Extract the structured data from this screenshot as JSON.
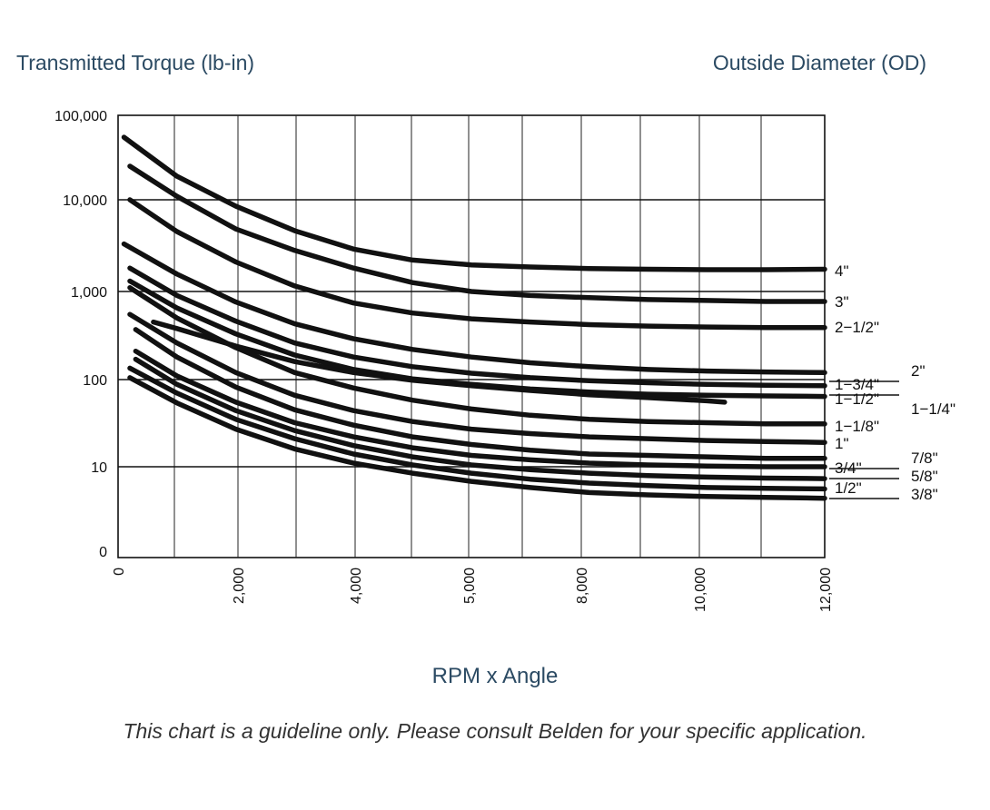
{
  "header": {
    "y_axis_title": "Transmitted Torque (lb-in)",
    "od_title": "Outside Diameter (OD)"
  },
  "footer": {
    "x_axis_title": "RPM x Angle",
    "note": "This chart is a guideline only. Please consult Belden for your specific application."
  },
  "chart_data": {
    "type": "line",
    "title": "",
    "xlabel": "RPM x Angle",
    "ylabel": "Transmitted Torque (lb-in)",
    "y_scale": "log",
    "x_ticks": [
      "0",
      "2,000",
      "4,000",
      "5,000",
      "8,000",
      "10,000",
      "12,000"
    ],
    "y_ticks": [
      "0",
      "10",
      "100",
      "1,000",
      "10,000",
      "100,000"
    ],
    "grid": true,
    "series_labels_position": "right",
    "series": [
      {
        "name": "4\"",
        "x": [
          0.1,
          1,
          2,
          3,
          4,
          5,
          6,
          7,
          8,
          9,
          10,
          11,
          12
        ],
        "y": [
          55000,
          19000,
          8500,
          4600,
          2900,
          2200,
          1950,
          1850,
          1780,
          1750,
          1730,
          1730,
          1750
        ]
      },
      {
        "name": "3\"",
        "x": [
          0.2,
          1,
          2,
          3,
          4,
          5,
          6,
          7,
          8,
          9,
          10,
          11,
          12
        ],
        "y": [
          25000,
          11000,
          4800,
          2800,
          1800,
          1250,
          1000,
          900,
          850,
          810,
          790,
          770,
          770
        ]
      },
      {
        "name": "2-1/2\"",
        "x": [
          0.2,
          1,
          2,
          3,
          4,
          5,
          6,
          7,
          8,
          9,
          10,
          11,
          12
        ],
        "y": [
          10000,
          4500,
          2100,
          1150,
          740,
          570,
          490,
          450,
          420,
          405,
          395,
          390,
          390
        ]
      },
      {
        "name": "2\"",
        "x": [
          0.1,
          1,
          2,
          3,
          4,
          5,
          6,
          7,
          8,
          9,
          10,
          11,
          12
        ],
        "y": [
          3300,
          1550,
          760,
          430,
          290,
          220,
          180,
          155,
          140,
          130,
          125,
          122,
          120
        ]
      },
      {
        "name": "1-3/4\"",
        "x": [
          0.2,
          1,
          2,
          3,
          4,
          5,
          6,
          7,
          8,
          9,
          10,
          11,
          12
        ],
        "y": [
          1800,
          900,
          460,
          260,
          180,
          140,
          118,
          105,
          97,
          92,
          88,
          86,
          85
        ]
      },
      {
        "name": "1-1/4\"",
        "x": [
          0.6,
          1,
          2,
          3,
          4,
          5,
          6,
          7,
          8,
          9,
          10,
          10.3
        ],
        "y": [
          450,
          380,
          240,
          160,
          120,
          98,
          85,
          75,
          67,
          62,
          57,
          55
        ]
      },
      {
        "name": "1-1/2\"",
        "x": [
          0.2,
          1,
          2,
          3,
          4,
          5,
          6,
          7,
          8,
          9,
          10,
          11,
          12
        ],
        "y": [
          1300,
          650,
          330,
          190,
          130,
          102,
          88,
          78,
          72,
          68,
          66,
          65,
          64
        ]
      },
      {
        "name": "1-1/8\"",
        "x": [
          0.2,
          1,
          2,
          3,
          4,
          5,
          6,
          7,
          8,
          9,
          10,
          11,
          12
        ],
        "y": [
          1100,
          500,
          230,
          120,
          80,
          58,
          46,
          39,
          35,
          33,
          32,
          31,
          31
        ]
      },
      {
        "name": "1\"",
        "x": [
          0.2,
          1,
          2,
          3,
          4,
          5,
          6,
          7,
          8,
          9,
          10,
          11,
          12
        ],
        "y": [
          550,
          260,
          120,
          66,
          44,
          33,
          27,
          24,
          22,
          21,
          20,
          19.5,
          19
        ]
      },
      {
        "name": "7/8\"",
        "x": [
          0.3,
          1,
          2,
          3,
          4,
          5,
          6,
          7,
          8,
          9,
          10,
          11,
          12
        ],
        "y": [
          370,
          180,
          82,
          45,
          30,
          22,
          18,
          15.5,
          14,
          13.5,
          13,
          12.5,
          12.5
        ]
      },
      {
        "name": "3/4\"",
        "x": [
          0.3,
          1,
          2,
          3,
          4,
          5,
          6,
          7,
          8,
          9,
          10,
          11,
          12
        ],
        "y": [
          210,
          110,
          55,
          32,
          22,
          16.5,
          13.5,
          12,
          11,
          10.5,
          10.2,
          10,
          10
        ]
      },
      {
        "name": "5/8\"",
        "x": [
          0.3,
          1,
          2,
          3,
          4,
          5,
          6,
          7,
          8,
          9,
          10,
          11,
          12
        ],
        "y": [
          170,
          88,
          44,
          26,
          17.5,
          13,
          10.5,
          9.3,
          8.5,
          8,
          7.7,
          7.5,
          7.4
        ]
      },
      {
        "name": "1/2\"",
        "x": [
          0.2,
          1,
          2,
          3,
          4,
          5,
          6,
          7,
          8,
          9,
          10,
          11,
          12
        ],
        "y": [
          135,
          70,
          35,
          21,
          14,
          10.5,
          8.5,
          7.3,
          6.6,
          6.2,
          5.9,
          5.8,
          5.7
        ]
      },
      {
        "name": "3/8\"",
        "x": [
          0.2,
          1,
          2,
          3,
          4,
          5,
          6,
          7,
          8,
          9,
          10,
          11,
          12
        ],
        "y": [
          105,
          54,
          27,
          16,
          11,
          8.5,
          6.9,
          5.9,
          5.2,
          4.9,
          4.7,
          4.6,
          4.5
        ]
      }
    ]
  }
}
